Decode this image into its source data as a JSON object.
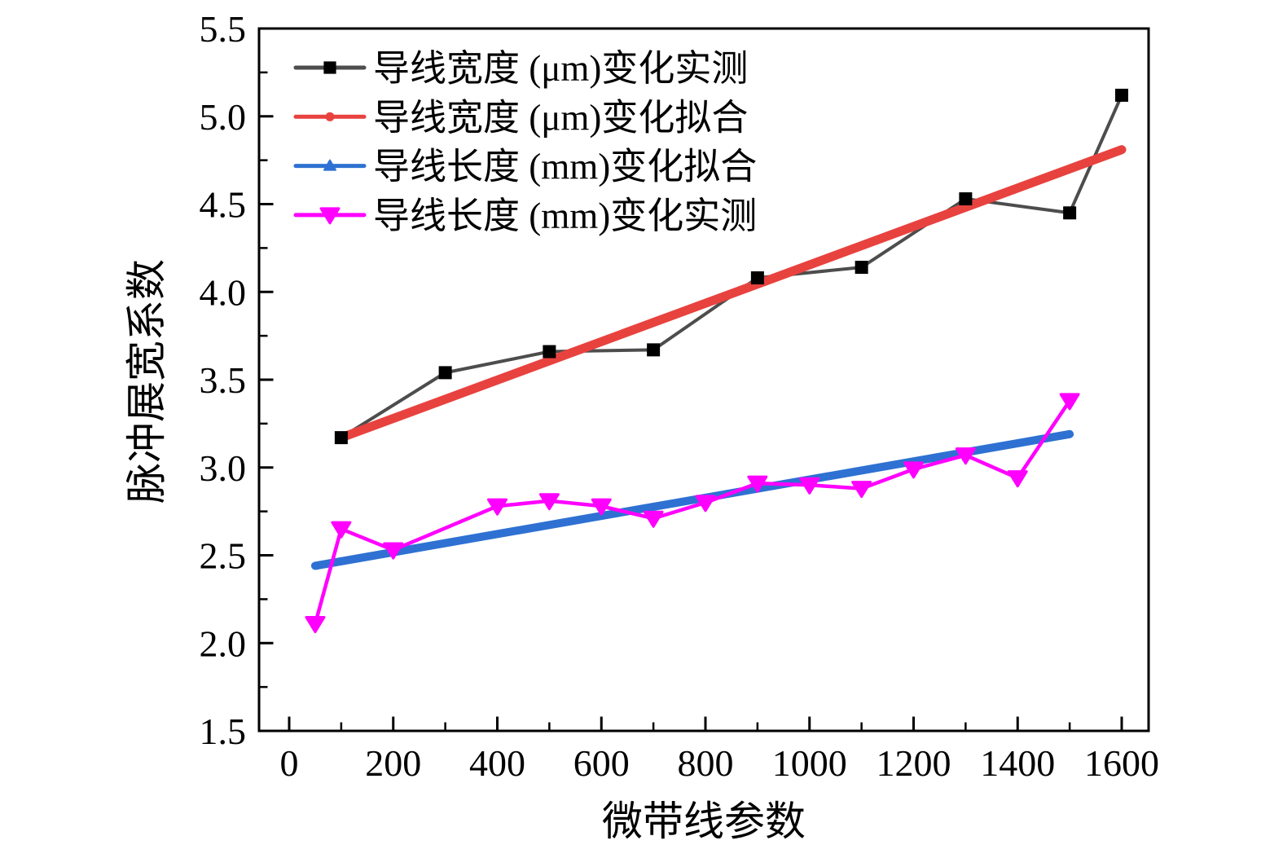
{
  "chart_data": {
    "type": "line",
    "title": "",
    "xlabel": "微带线参数",
    "ylabel": "脉冲展宽系数",
    "xlim": [
      0,
      1600
    ],
    "ylim": [
      1.5,
      5.5
    ],
    "grid": false,
    "legend_position": "upper-left-inside",
    "x_ticks_major": [
      0,
      200,
      400,
      600,
      800,
      1000,
      1200,
      1400,
      1600
    ],
    "x_tick_labels": [
      "0",
      "200",
      "400",
      "600",
      "800",
      "1000",
      "1200",
      "1400",
      "1600"
    ],
    "x_ticks_minor": [
      100,
      300,
      500,
      700,
      900,
      1100,
      1300,
      1500
    ],
    "y_ticks_major": [
      1.5,
      2.0,
      2.5,
      3.0,
      3.5,
      4.0,
      4.5,
      5.0,
      5.5
    ],
    "y_tick_labels": [
      "1.5",
      "2.0",
      "2.5",
      "3.0",
      "3.5",
      "4.0",
      "4.5",
      "5.0",
      "5.5"
    ],
    "y_ticks_minor": [
      1.75,
      2.25,
      2.75,
      3.25,
      3.75,
      4.25,
      4.75,
      5.25
    ],
    "series": [
      {
        "name": "导线宽度 (μm)变化实测",
        "kind": "measured",
        "marker": "square",
        "color_line": "#4d4d4d",
        "color_marker": "#000000",
        "line_width": 4,
        "x": [
          100,
          300,
          500,
          700,
          900,
          1100,
          1300,
          1500,
          1600
        ],
        "y": [
          3.17,
          3.54,
          3.66,
          3.67,
          4.08,
          4.14,
          4.53,
          4.45,
          5.12
        ]
      },
      {
        "name": "导线宽度 (μm)变化拟合",
        "kind": "fit",
        "marker": "dot",
        "color_line": "#e8423f",
        "color_marker": "#e8423f",
        "line_width": 11,
        "x": [
          100,
          1600
        ],
        "y": [
          3.17,
          4.81
        ]
      },
      {
        "name": "导线长度 (mm)变化拟合",
        "kind": "fit",
        "marker": "triangle-up",
        "color_line": "#2e71d2",
        "color_marker": "#2e71d2",
        "line_width": 10,
        "x": [
          50,
          1500
        ],
        "y": [
          2.44,
          3.19
        ]
      },
      {
        "name": "导线长度 (mm)变化实测",
        "kind": "measured",
        "marker": "triangle-down",
        "color_line": "#ff00ff",
        "color_marker": "#ff00ff",
        "line_width": 4.5,
        "x": [
          50,
          100,
          200,
          400,
          500,
          600,
          700,
          800,
          900,
          1000,
          1100,
          1200,
          1300,
          1400,
          1500
        ],
        "y": [
          2.11,
          2.65,
          2.53,
          2.78,
          2.81,
          2.78,
          2.71,
          2.8,
          2.91,
          2.9,
          2.88,
          2.99,
          3.07,
          2.94,
          3.38
        ]
      }
    ]
  }
}
